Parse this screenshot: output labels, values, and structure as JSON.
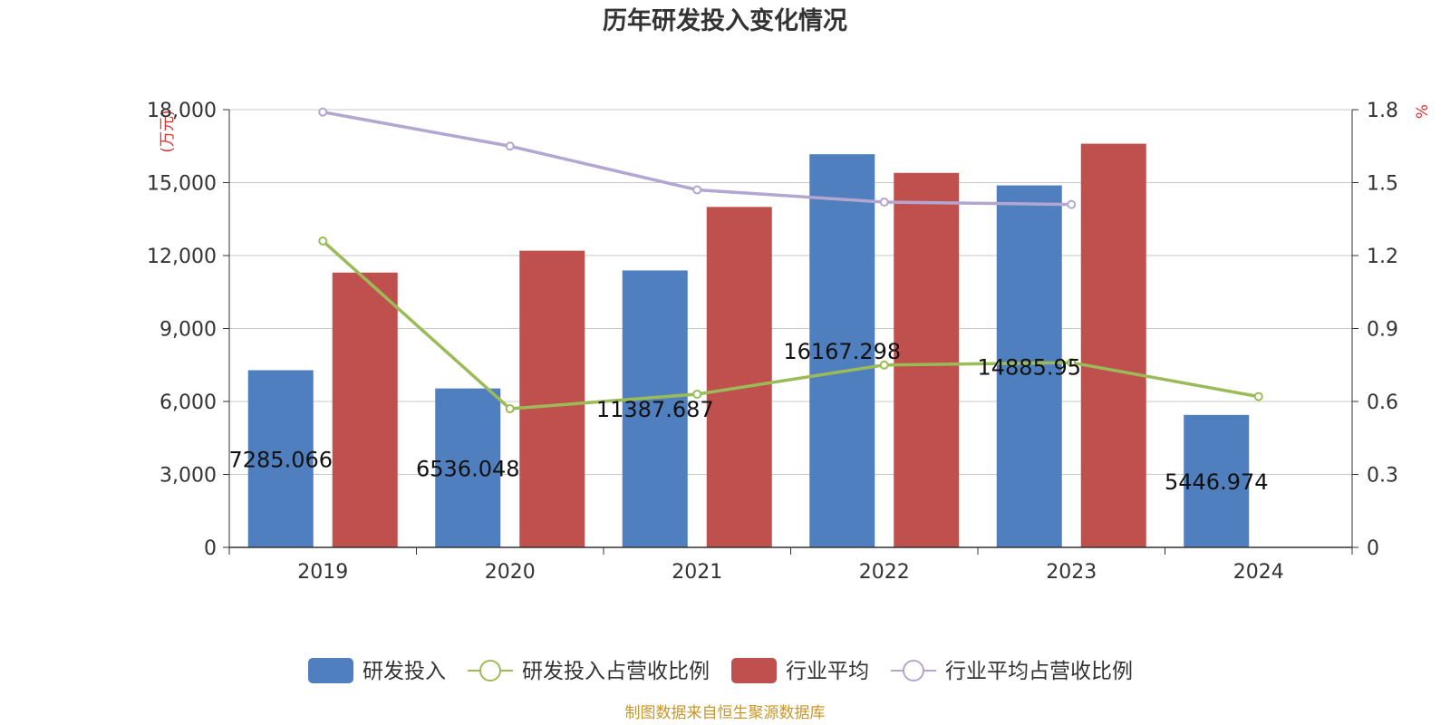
{
  "chart_data": {
    "type": "bar",
    "title": "历年研发投入变化情况",
    "left_axis_unit": "(万元)",
    "right_axis_unit": "%",
    "categories": [
      "2019",
      "2020",
      "2021",
      "2022",
      "2023",
      "2024"
    ],
    "left_ylim": [
      0,
      18000
    ],
    "left_ticks": [
      "0",
      "3,000",
      "6,000",
      "9,000",
      "12,000",
      "15,000",
      "18,000"
    ],
    "right_ylim": [
      0,
      1.8
    ],
    "right_ticks": [
      "0",
      "0.3",
      "0.6",
      "0.9",
      "1.2",
      "1.5",
      "1.8"
    ],
    "grid": true,
    "legend_position": "bottom",
    "series": [
      {
        "name": "研发投入",
        "kind": "bar",
        "axis": "left",
        "color": "#4f7fbe",
        "values": [
          7285.066,
          6536.048,
          11387.687,
          16167.298,
          14885.95,
          5446.974
        ],
        "labels": [
          "7285.066",
          "6536.048",
          "11387.687",
          "16167.298",
          "14885.95",
          "5446.974"
        ]
      },
      {
        "name": "研发投入占营收比例",
        "kind": "line",
        "axis": "right",
        "color": "#9bbb59",
        "values": [
          1.26,
          0.57,
          0.63,
          0.75,
          0.76,
          0.62
        ]
      },
      {
        "name": "行业平均",
        "kind": "bar",
        "axis": "left",
        "color": "#c0504d",
        "values": [
          11300,
          12200,
          14000,
          15400,
          16600,
          null
        ]
      },
      {
        "name": "行业平均占营收比例",
        "kind": "line",
        "axis": "right",
        "color": "#b3a6d0",
        "values": [
          1.79,
          1.65,
          1.47,
          1.42,
          1.41,
          null
        ]
      }
    ]
  },
  "footer": "制图数据来自恒生聚源数据库"
}
